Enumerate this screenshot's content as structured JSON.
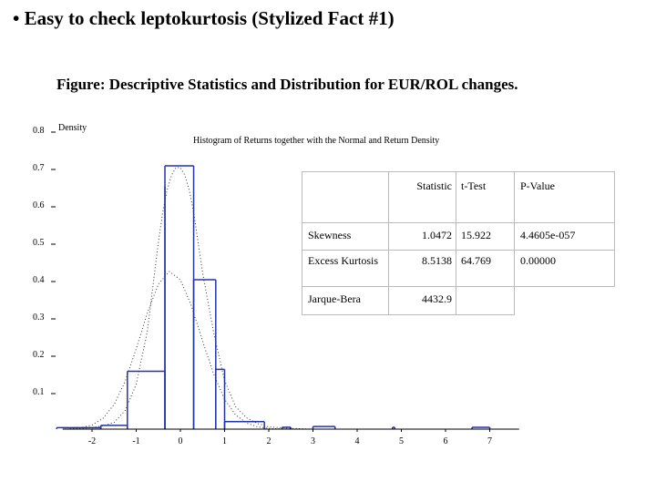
{
  "slide": {
    "title": "• Easy to check leptokurtosis (Stylized Fact #1)",
    "figure_caption": "Figure: Descriptive Statistics and Distribution for EUR/ROL changes."
  },
  "chart_data": {
    "type": "bar",
    "title": "Histogram of Returns together with the Normal and Return Density",
    "ylabel": "Density",
    "xlabel": "",
    "xlim": [
      -2.5,
      7.5
    ],
    "ylim": [
      0,
      0.8
    ],
    "y_ticks": [
      {
        "value": 0.1,
        "label": "0.1"
      },
      {
        "value": 0.2,
        "label": "0.2"
      },
      {
        "value": 0.3,
        "label": "0.3"
      },
      {
        "value": 0.4,
        "label": "0.4"
      },
      {
        "value": 0.5,
        "label": "0.5"
      },
      {
        "value": 0.6,
        "label": "0.6"
      },
      {
        "value": 0.7,
        "label": "0.7"
      },
      {
        "value": 0.8,
        "label": "0.8"
      }
    ],
    "x_ticks": [
      {
        "value": -2,
        "label": "-2"
      },
      {
        "value": -1,
        "label": "-1"
      },
      {
        "value": 0,
        "label": "0"
      },
      {
        "value": 1,
        "label": "1"
      },
      {
        "value": 2,
        "label": "2"
      },
      {
        "value": 3,
        "label": "3"
      },
      {
        "value": 4,
        "label": "4"
      },
      {
        "value": 5,
        "label": "5"
      },
      {
        "value": 6,
        "label": "6"
      },
      {
        "value": 7,
        "label": "7"
      }
    ],
    "histogram": [
      {
        "x0": -2.8,
        "x1": -1.8,
        "value": 0.004
      },
      {
        "x0": -1.8,
        "x1": -1.2,
        "value": 0.01
      },
      {
        "x0": -1.2,
        "x1": -0.35,
        "value": 0.155
      },
      {
        "x0": -0.35,
        "x1": -0.35,
        "value": 0.65
      },
      {
        "x0": -0.35,
        "x1": 0.3,
        "value": 0.705
      },
      {
        "x0": 0.3,
        "x1": 0.8,
        "value": 0.4
      },
      {
        "x0": 0.8,
        "x1": 1.0,
        "value": 0.16
      },
      {
        "x0": 1.0,
        "x1": 1.9,
        "value": 0.02
      },
      {
        "x0": 2.3,
        "x1": 2.5,
        "value": 0.005
      },
      {
        "x0": 3.0,
        "x1": 3.5,
        "value": 0.007
      },
      {
        "x0": 4.8,
        "x1": 4.85,
        "value": 0.005
      },
      {
        "x0": 6.6,
        "x1": 7.0,
        "value": 0.005
      }
    ],
    "series": [
      {
        "kind": "normal-density",
        "style": "dotted",
        "x": [
          -2.5,
          -2.25,
          -2.0,
          -1.75,
          -1.5,
          -1.25,
          -1.0,
          -0.75,
          -0.5,
          -0.25,
          0.0,
          0.25,
          0.5,
          0.75,
          1.0,
          1.25,
          1.5,
          1.75,
          2.0,
          2.25,
          2.5,
          3.0
        ],
        "y": [
          0.001,
          0.004,
          0.011,
          0.029,
          0.066,
          0.128,
          0.215,
          0.31,
          0.388,
          0.422,
          0.4,
          0.33,
          0.236,
          0.148,
          0.08,
          0.038,
          0.016,
          0.006,
          0.002,
          0.001,
          0.0,
          0.0
        ]
      },
      {
        "kind": "return-density",
        "style": "dotted",
        "x": [
          -2.5,
          -2.0,
          -1.75,
          -1.5,
          -1.25,
          -1.0,
          -0.75,
          -0.5,
          -0.4,
          -0.3,
          -0.2,
          -0.1,
          0.0,
          0.1,
          0.2,
          0.3,
          0.4,
          0.5,
          0.75,
          1.0,
          1.25,
          1.5,
          1.75,
          2.0,
          2.5,
          3.0
        ],
        "y": [
          0.0,
          0.004,
          0.009,
          0.018,
          0.05,
          0.12,
          0.26,
          0.5,
          0.58,
          0.64,
          0.68,
          0.7,
          0.7,
          0.68,
          0.64,
          0.58,
          0.5,
          0.42,
          0.26,
          0.13,
          0.06,
          0.03,
          0.015,
          0.006,
          0.002,
          0.0
        ]
      }
    ]
  },
  "stats_table": {
    "header": [
      "",
      "Statistic",
      "t-Test",
      "P-Value"
    ],
    "rows": [
      [
        "Skewness",
        "1.0472",
        "15.922",
        "4.4605e-057"
      ],
      [
        "Excess Kurtosis",
        "8.5138",
        "64.769",
        "0.00000"
      ],
      [
        "Jarque-Bera",
        "4432.9",
        "",
        ""
      ]
    ]
  },
  "colors": {
    "histogram": "#2233aa",
    "density": "#333333",
    "axis": "#000000"
  }
}
